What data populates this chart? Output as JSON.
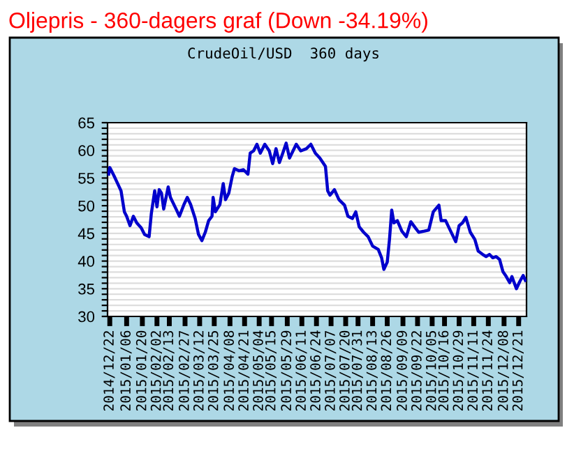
{
  "chart_data": {
    "type": "line",
    "title": "Oljepris - 360-dagers graf (Down -34.19%)",
    "subtitle": "CrudeOil/USD  360 days",
    "x": [
      "2014-12-21",
      "2014-12-22",
      "2014-12-26",
      "2014-12-29",
      "2015-01-01",
      "2015-01-04",
      "2015-01-06",
      "2015-01-09",
      "2015-01-12",
      "2015-01-15",
      "2015-01-19",
      "2015-01-22",
      "2015-01-26",
      "2015-01-28",
      "2015-01-31",
      "2015-02-02",
      "2015-02-04",
      "2015-02-06",
      "2015-02-08",
      "2015-02-12",
      "2015-02-14",
      "2015-02-19",
      "2015-02-22",
      "2015-02-26",
      "2015-03-01",
      "2015-03-04",
      "2015-03-08",
      "2015-03-11",
      "2015-03-14",
      "2015-03-17",
      "2015-03-20",
      "2015-03-23",
      "2015-03-24",
      "2015-03-26",
      "2015-03-30",
      "2015-04-02",
      "2015-04-04",
      "2015-04-07",
      "2015-04-10",
      "2015-04-12",
      "2015-04-16",
      "2015-04-20",
      "2015-04-24",
      "2015-04-26",
      "2015-04-29",
      "2015-05-02",
      "2015-05-05",
      "2015-05-09",
      "2015-05-13",
      "2015-05-16",
      "2015-05-19",
      "2015-05-22",
      "2015-05-25",
      "2015-05-28",
      "2015-05-31",
      "2015-06-06",
      "2015-06-10",
      "2015-06-15",
      "2015-06-19",
      "2015-06-23",
      "2015-06-27",
      "2015-07-02",
      "2015-07-04",
      "2015-07-06",
      "2015-07-10",
      "2015-07-14",
      "2015-07-19",
      "2015-07-22",
      "2015-07-26",
      "2015-07-29",
      "2015-08-01",
      "2015-08-05",
      "2015-08-09",
      "2015-08-13",
      "2015-08-18",
      "2015-08-21",
      "2015-08-23",
      "2015-08-26",
      "2015-08-28",
      "2015-08-30",
      "2015-09-01",
      "2015-09-04",
      "2015-09-08",
      "2015-09-12",
      "2015-09-16",
      "2015-09-20",
      "2015-09-23",
      "2015-09-28",
      "2015-10-02",
      "2015-10-06",
      "2015-10-11",
      "2015-10-13",
      "2015-10-17",
      "2015-10-21",
      "2015-10-26",
      "2015-10-29",
      "2015-11-01",
      "2015-11-04",
      "2015-11-08",
      "2015-11-12",
      "2015-11-15",
      "2015-11-19",
      "2015-11-22",
      "2015-11-25",
      "2015-11-28",
      "2015-12-01",
      "2015-12-04",
      "2015-12-07",
      "2015-12-10",
      "2015-12-13",
      "2015-12-15",
      "2015-12-19",
      "2015-12-22",
      "2015-12-25",
      "2015-12-27"
    ],
    "series": [
      {
        "color": "#0000cc",
        "values": [
          55.7,
          56.9,
          55.3,
          54.0,
          52.7,
          48.9,
          48.1,
          46.4,
          48.1,
          46.9,
          46.0,
          44.8,
          44.4,
          48.6,
          52.7,
          49.8,
          52.9,
          52.3,
          49.4,
          53.4,
          51.5,
          49.4,
          48.1,
          50.2,
          51.5,
          50.2,
          47.7,
          44.8,
          43.7,
          45.2,
          47.3,
          48.1,
          51.5,
          48.9,
          50.2,
          54.0,
          51.1,
          52.3,
          55.3,
          56.7,
          56.3,
          56.5,
          55.7,
          59.5,
          59.9,
          61.1,
          59.5,
          61.1,
          59.9,
          57.6,
          60.3,
          57.8,
          59.5,
          61.3,
          58.6,
          61.1,
          59.9,
          60.3,
          61.1,
          59.5,
          58.6,
          57.1,
          52.7,
          51.9,
          52.9,
          51.1,
          50.1,
          48.1,
          47.7,
          48.9,
          46.2,
          45.2,
          44.4,
          42.7,
          42.1,
          40.6,
          38.5,
          39.8,
          43.9,
          49.2,
          46.9,
          47.3,
          45.4,
          44.4,
          47.1,
          46.0,
          45.2,
          45.4,
          45.6,
          48.9,
          50.1,
          47.3,
          47.3,
          45.6,
          43.5,
          46.4,
          46.9,
          47.9,
          45.2,
          43.9,
          41.8,
          41.2,
          40.8,
          41.2,
          40.6,
          40.8,
          40.3,
          38.1,
          37.2,
          36.1,
          37.2,
          35.0,
          36.3,
          37.4,
          36.5
        ]
      }
    ],
    "xlim": [
      "2014-12-20",
      "2015-12-28"
    ],
    "xticks": [
      {
        "value": "2014-12-22",
        "label": "2014/12/22"
      },
      {
        "value": "2015-01-06",
        "label": "2015/01/06"
      },
      {
        "value": "2015-01-20",
        "label": "2015/01/20"
      },
      {
        "value": "2015-02-02",
        "label": "2015/02/02"
      },
      {
        "value": "2015-02-13",
        "label": "2015/02/13"
      },
      {
        "value": "2015-02-27",
        "label": "2015/02/27"
      },
      {
        "value": "2015-03-12",
        "label": "2015/03/12"
      },
      {
        "value": "2015-03-25",
        "label": "2015/03/25"
      },
      {
        "value": "2015-04-08",
        "label": "2015/04/08"
      },
      {
        "value": "2015-04-21",
        "label": "2015/04/21"
      },
      {
        "value": "2015-05-04",
        "label": "2015/05/04"
      },
      {
        "value": "2015-05-15",
        "label": "2015/05/15"
      },
      {
        "value": "2015-05-29",
        "label": "2015/05/29"
      },
      {
        "value": "2015-06-11",
        "label": "2015/06/11"
      },
      {
        "value": "2015-06-24",
        "label": "2015/06/24"
      },
      {
        "value": "2015-07-07",
        "label": "2015/07/07"
      },
      {
        "value": "2015-07-20",
        "label": "2015/07/20"
      },
      {
        "value": "2015-07-31",
        "label": "2015/07/31"
      },
      {
        "value": "2015-08-13",
        "label": "2015/08/13"
      },
      {
        "value": "2015-08-26",
        "label": "2015/08/26"
      },
      {
        "value": "2015-09-09",
        "label": "2015/09/09"
      },
      {
        "value": "2015-09-22",
        "label": "2015/09/22"
      },
      {
        "value": "2015-10-05",
        "label": "2015/10/05"
      },
      {
        "value": "2015-10-16",
        "label": "2015/10/16"
      },
      {
        "value": "2015-10-29",
        "label": "2015/10/29"
      },
      {
        "value": "2015-11-11",
        "label": "2015/11/11"
      },
      {
        "value": "2015-11-24",
        "label": "2015/11/24"
      },
      {
        "value": "2015-12-08",
        "label": "2015/12/08"
      },
      {
        "value": "2015-12-21",
        "label": "2015/12/21"
      }
    ],
    "ylim": [
      30,
      65
    ],
    "yticks": [
      30,
      {
        "value": 31,
        "label": null
      },
      {
        "value": 32,
        "label": null
      },
      {
        "value": 33,
        "label": null
      },
      {
        "value": 34,
        "label": null
      },
      35,
      {
        "value": 36,
        "label": null
      },
      {
        "value": 37,
        "label": null
      },
      {
        "value": 38,
        "label": null
      },
      {
        "value": 39,
        "label": null
      },
      40,
      {
        "value": 41,
        "label": null
      },
      {
        "value": 42,
        "label": null
      },
      {
        "value": 43,
        "label": null
      },
      {
        "value": 44,
        "label": null
      },
      45,
      {
        "value": 46,
        "label": null
      },
      {
        "value": 47,
        "label": null
      },
      {
        "value": 48,
        "label": null
      },
      {
        "value": 49,
        "label": null
      },
      50,
      {
        "value": 51,
        "label": null
      },
      {
        "value": 52,
        "label": null
      },
      {
        "value": 53,
        "label": null
      },
      {
        "value": 54,
        "label": null
      },
      55,
      {
        "value": 56,
        "label": null
      },
      {
        "value": 57,
        "label": null
      },
      {
        "value": 58,
        "label": null
      },
      {
        "value": 59,
        "label": null
      },
      60,
      {
        "value": 61,
        "label": null
      },
      {
        "value": 62,
        "label": null
      },
      {
        "value": 63,
        "label": null
      },
      {
        "value": 64,
        "label": null
      },
      65
    ],
    "grid": "y",
    "line_style": "solid"
  }
}
